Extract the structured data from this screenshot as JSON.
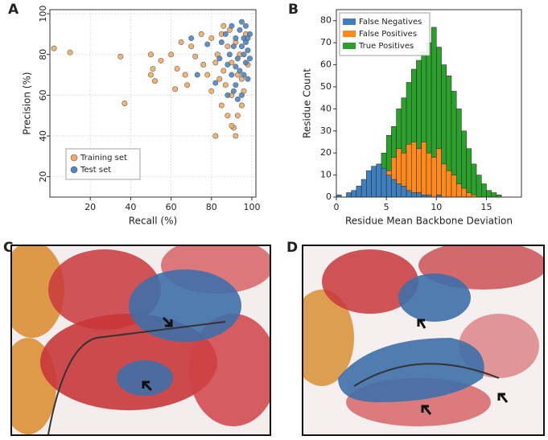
{
  "panel_labels": [
    "A",
    "B",
    "C",
    "D"
  ],
  "chart_data": [
    {
      "type": "scatter",
      "xlabel": "Recall (%)",
      "ylabel": "Precision (%)",
      "xlim": [
        0,
        102
      ],
      "ylim": [
        10,
        102
      ],
      "xticks": [
        20,
        40,
        60,
        80,
        100
      ],
      "yticks": [
        20,
        40,
        60,
        80,
        100
      ],
      "grid": true,
      "legend": "lower left",
      "series": [
        {
          "name": "Training set",
          "color": "#f2aa62",
          "x": [
            2,
            10,
            35,
            37,
            50,
            50,
            52,
            51,
            55,
            60,
            62,
            63,
            65,
            67,
            68,
            70,
            72,
            75,
            76,
            78,
            80,
            80,
            82,
            83,
            85,
            85,
            86,
            87,
            88,
            88,
            89,
            90,
            90,
            91,
            92,
            92,
            93,
            94,
            95,
            96,
            97,
            98,
            82,
            84,
            86,
            90,
            93,
            95
          ],
          "values": [
            83,
            81,
            79,
            56,
            80,
            70,
            67,
            73,
            77,
            80,
            63,
            73,
            86,
            70,
            65,
            84,
            79,
            90,
            75,
            70,
            88,
            62,
            40,
            80,
            90,
            55,
            72,
            65,
            84,
            50,
            92,
            76,
            60,
            44,
            40,
            86,
            70,
            80,
            55,
            62,
            90,
            75,
            76,
            68,
            94,
            45,
            50,
            68
          ]
        },
        {
          "name": "Test set",
          "color": "#4a86c8",
          "x": [
            70,
            73,
            78,
            82,
            84,
            85,
            87,
            88,
            89,
            90,
            90,
            91,
            92,
            92,
            93,
            94,
            94,
            95,
            95,
            96,
            96,
            97,
            97,
            98,
            98,
            99,
            99,
            93,
            91,
            96,
            88,
            97,
            95,
            92,
            98
          ],
          "values": [
            88,
            70,
            85,
            66,
            78,
            86,
            90,
            75,
            80,
            94,
            70,
            84,
            88,
            65,
            78,
            92,
            72,
            84,
            60,
            80,
            88,
            76,
            94,
            82,
            68,
            90,
            78,
            58,
            62,
            70,
            60,
            86,
            96,
            74,
            88
          ]
        }
      ]
    },
    {
      "type": "histogram",
      "xlabel": "Residue Mean Backbone Deviation",
      "ylabel": "Residue Count",
      "xlim": [
        0,
        18.5
      ],
      "ylim": [
        0,
        85
      ],
      "xticks": [
        0,
        5,
        10,
        15
      ],
      "yticks": [
        0,
        10,
        20,
        30,
        40,
        50,
        60,
        70,
        80
      ],
      "legend": "upper left",
      "bins": [
        0,
        0.5,
        1,
        1.5,
        2,
        2.5,
        3,
        3.5,
        4,
        4.5,
        5,
        5.5,
        6,
        6.5,
        7,
        7.5,
        8,
        8.5,
        9,
        9.5,
        10,
        10.5,
        11,
        11.5,
        12,
        12.5,
        13,
        13.5,
        14,
        14.5,
        15,
        15.5,
        16,
        16.5,
        17,
        17.5
      ],
      "series": [
        {
          "name": "False Negatives",
          "color": "#3f7fbf",
          "values": [
            1,
            0,
            2,
            3,
            5,
            8,
            12,
            14,
            15,
            13,
            10,
            8,
            6,
            5,
            3,
            2,
            2,
            1,
            1,
            0,
            1,
            0,
            0,
            0,
            0,
            0,
            0,
            0,
            0,
            0,
            0,
            0,
            0,
            0,
            0
          ]
        },
        {
          "name": "False Positives",
          "color": "#ff8a1c",
          "values": [
            0,
            0,
            0,
            0,
            0,
            1,
            2,
            3,
            5,
            8,
            12,
            18,
            22,
            20,
            24,
            25,
            22,
            25,
            20,
            18,
            22,
            15,
            12,
            10,
            6,
            4,
            2,
            1,
            0,
            0,
            0,
            0,
            0,
            0,
            0
          ]
        },
        {
          "name": "True Positives",
          "color": "#2ca02c",
          "values": [
            0,
            0,
            0,
            0,
            0,
            2,
            4,
            6,
            12,
            20,
            28,
            32,
            40,
            45,
            52,
            58,
            62,
            66,
            70,
            77,
            68,
            60,
            55,
            48,
            40,
            30,
            22,
            15,
            10,
            6,
            3,
            2,
            1,
            0,
            0
          ]
        }
      ]
    }
  ]
}
